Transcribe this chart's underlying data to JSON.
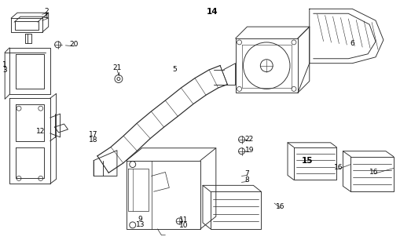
{
  "bg_color": "#ffffff",
  "line_color": "#2a2a2a",
  "label_color": "#000000",
  "figsize": [
    5.09,
    3.2
  ],
  "dpi": 100,
  "labels": [
    [
      "2",
      57,
      13,
      false
    ],
    [
      "4",
      57,
      20,
      false
    ],
    [
      "20",
      93,
      56,
      false
    ],
    [
      "1",
      4,
      82,
      false
    ],
    [
      "3",
      4,
      89,
      false
    ],
    [
      "21",
      148,
      86,
      false
    ],
    [
      "5",
      222,
      88,
      false
    ],
    [
      "12",
      50,
      168,
      false
    ],
    [
      "17",
      118,
      172,
      false
    ],
    [
      "18",
      118,
      179,
      false
    ],
    [
      "14",
      270,
      14,
      true
    ],
    [
      "6",
      450,
      55,
      false
    ],
    [
      "22",
      318,
      178,
      false
    ],
    [
      "19",
      318,
      192,
      false
    ],
    [
      "15",
      392,
      205,
      true
    ],
    [
      "16",
      432,
      214,
      false
    ],
    [
      "16",
      478,
      220,
      false
    ],
    [
      "7",
      315,
      222,
      false
    ],
    [
      "8",
      315,
      230,
      false
    ],
    [
      "9",
      178,
      281,
      false
    ],
    [
      "13",
      178,
      288,
      false
    ],
    [
      "11",
      234,
      282,
      false
    ],
    [
      "10",
      234,
      289,
      false
    ],
    [
      "16",
      358,
      264,
      false
    ]
  ]
}
